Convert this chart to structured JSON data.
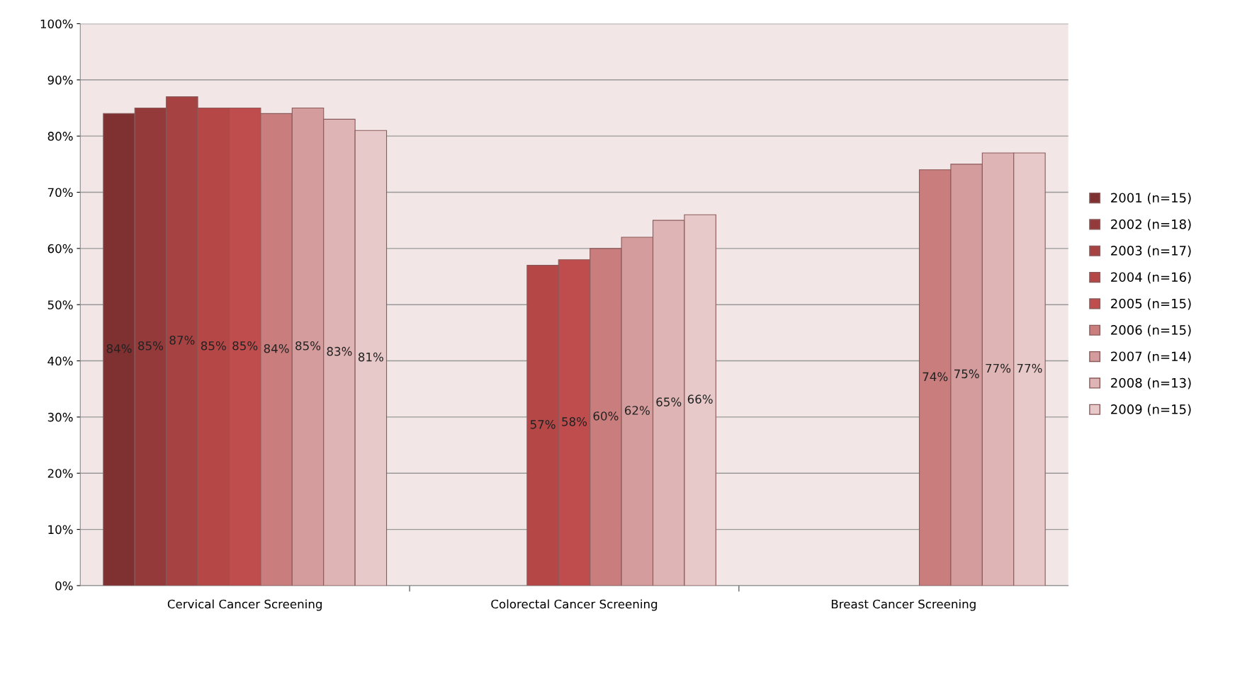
{
  "chart_data": {
    "type": "bar",
    "categories": [
      "Cervical Cancer Screening",
      "Colorectal Cancer Screening",
      "Breast Cancer Screening"
    ],
    "series": [
      {
        "name": "2001 (n=15)",
        "color": "#7f3030",
        "values": [
          84,
          null,
          null
        ],
        "value_labels": [
          "84%",
          null,
          null
        ]
      },
      {
        "name": "2002 (n=18)",
        "color": "#943a3a",
        "values": [
          85,
          null,
          null
        ],
        "value_labels": [
          "85%",
          null,
          null
        ]
      },
      {
        "name": "2003 (n=17)",
        "color": "#a64242",
        "values": [
          87,
          null,
          null
        ],
        "value_labels": [
          "87%",
          null,
          null
        ]
      },
      {
        "name": "2004 (n=16)",
        "color": "#b54747",
        "values": [
          85,
          57,
          null
        ],
        "value_labels": [
          "85%",
          "57%",
          null
        ]
      },
      {
        "name": "2005 (n=15)",
        "color": "#c04d4d",
        "values": [
          85,
          58,
          null
        ],
        "value_labels": [
          "85%",
          "58%",
          null
        ]
      },
      {
        "name": "2006 (n=15)",
        "color": "#c97d7d",
        "values": [
          84,
          60,
          74
        ],
        "value_labels": [
          "84%",
          "60%",
          "74%"
        ]
      },
      {
        "name": "2007 (n=14)",
        "color": "#d49c9c",
        "values": [
          85,
          62,
          75
        ],
        "value_labels": [
          "85%",
          "62%",
          "75%"
        ]
      },
      {
        "name": "2008 (n=13)",
        "color": "#dfb4b4",
        "values": [
          83,
          65,
          77
        ],
        "value_labels": [
          "83%",
          "65%",
          "77%"
        ]
      },
      {
        "name": "2009 (n=15)",
        "color": "#e8c9c9",
        "values": [
          81,
          66,
          77
        ],
        "value_labels": [
          "81%",
          "66%",
          "77%"
        ]
      }
    ],
    "ylim": [
      0,
      100
    ],
    "yticks": [
      {
        "value": 0,
        "label": "0%"
      },
      {
        "value": 10,
        "label": "10%"
      },
      {
        "value": 20,
        "label": "20%"
      },
      {
        "value": 30,
        "label": "30%"
      },
      {
        "value": 40,
        "label": "40%"
      },
      {
        "value": 50,
        "label": "50%"
      },
      {
        "value": 60,
        "label": "60%"
      },
      {
        "value": 70,
        "label": "70%"
      },
      {
        "value": 80,
        "label": "80%"
      },
      {
        "value": 90,
        "label": "90%"
      },
      {
        "value": 100,
        "label": "100%"
      }
    ],
    "grid": "y",
    "legend": "right"
  }
}
